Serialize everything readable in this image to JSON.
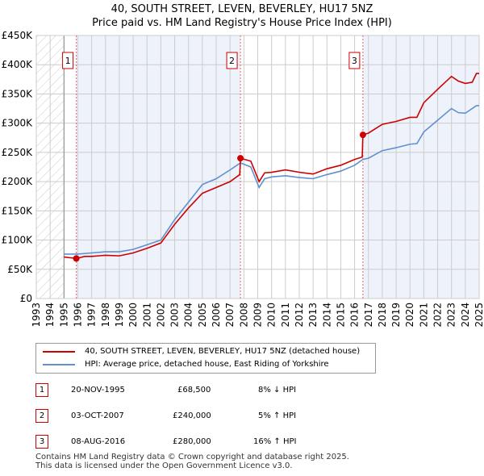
{
  "title": "40, SOUTH STREET, LEVEN, BEVERLEY, HU17 5NZ",
  "subtitle": "Price paid vs. HM Land Registry's House Price Index (HPI)",
  "chart_data": {
    "type": "line",
    "xlim": [
      1993,
      2025
    ],
    "ylim": [
      0,
      450000
    ],
    "yticks": [
      0,
      50000,
      100000,
      150000,
      200000,
      250000,
      300000,
      350000,
      400000,
      450000
    ],
    "ytick_labels": [
      "£0",
      "£50K",
      "£100K",
      "£150K",
      "£200K",
      "£250K",
      "£300K",
      "£350K",
      "£400K",
      "£450K"
    ],
    "xticks": [
      "1993",
      "1994",
      "1995",
      "1996",
      "1997",
      "1998",
      "1999",
      "2000",
      "2001",
      "2002",
      "2003",
      "2004",
      "2005",
      "2006",
      "2007",
      "2008",
      "2009",
      "2010",
      "2011",
      "2012",
      "2013",
      "2014",
      "2015",
      "2016",
      "2017",
      "2018",
      "2019",
      "2020",
      "2021",
      "2022",
      "2023",
      "2024",
      "2025"
    ],
    "grid": true,
    "series": [
      {
        "name": "40, SOUTH STREET, LEVEN, BEVERLEY, HU17 5NZ (detached house)",
        "color": "#cc0000",
        "x": [
          1995,
          1995.9,
          1996.5,
          1997,
          1998,
          1999,
          2000,
          2001,
          2002,
          2003,
          2004,
          2005,
          2006,
          2007,
          2007.7,
          2007.76,
          2008.5,
          2009.1,
          2009.5,
          2010,
          2011,
          2012,
          2013,
          2014,
          2015,
          2016,
          2016.55,
          2016.6,
          2017,
          2018,
          2019,
          2020,
          2020.5,
          2021,
          2022,
          2023,
          2023.5,
          2024,
          2024.5,
          2024.8,
          2025
        ],
        "y": [
          71000,
          68500,
          72000,
          72000,
          74000,
          73000,
          78000,
          86000,
          95000,
          127000,
          155000,
          180000,
          190000,
          200000,
          212000,
          240000,
          235000,
          200000,
          215000,
          216000,
          220000,
          216000,
          213000,
          222000,
          228000,
          238000,
          242000,
          280000,
          283000,
          298000,
          303000,
          310000,
          310000,
          335000,
          358000,
          380000,
          372000,
          368000,
          370000,
          385000,
          385000
        ]
      },
      {
        "name": "HPI: Average price, detached house, East Riding of Yorkshire",
        "color": "#6090d0",
        "x": [
          1995,
          1996,
          1997,
          1998,
          1999,
          2000,
          2001,
          2002,
          2003,
          2004,
          2005,
          2006,
          2007,
          2007.75,
          2008.5,
          2009.1,
          2009.5,
          2010,
          2011,
          2012,
          2013,
          2014,
          2015,
          2016,
          2016.6,
          2017,
          2018,
          2019,
          2020,
          2020.5,
          2021,
          2022,
          2023,
          2023.5,
          2024,
          2024.8,
          2025
        ],
        "y": [
          76000,
          76000,
          78000,
          80000,
          80000,
          84000,
          92000,
          100000,
          135000,
          165000,
          195000,
          205000,
          220000,
          232000,
          225000,
          190000,
          205000,
          208000,
          210000,
          207000,
          205000,
          212000,
          218000,
          228000,
          238000,
          240000,
          253000,
          258000,
          264000,
          265000,
          285000,
          305000,
          325000,
          318000,
          317000,
          330000,
          330000
        ]
      }
    ],
    "sales": [
      {
        "label": "1",
        "x": 1995.89,
        "y": 68500
      },
      {
        "label": "2",
        "x": 2007.75,
        "y": 240000
      },
      {
        "label": "3",
        "x": 2016.6,
        "y": 280000
      }
    ]
  },
  "legend": [
    "40, SOUTH STREET, LEVEN, BEVERLEY, HU17 5NZ (detached house)",
    "HPI: Average price, detached house, East Riding of Yorkshire"
  ],
  "transactions": [
    {
      "num": "1",
      "date": "20-NOV-1995",
      "price": "£68,500",
      "hpi": "8% ↓ HPI"
    },
    {
      "num": "2",
      "date": "03-OCT-2007",
      "price": "£240,000",
      "hpi": "5% ↑ HPI"
    },
    {
      "num": "3",
      "date": "08-AUG-2016",
      "price": "£280,000",
      "hpi": "16% ↑ HPI"
    }
  ],
  "footer": [
    "Contains HM Land Registry data © Crown copyright and database right 2025.",
    "This data is licensed under the Open Government Licence v3.0."
  ]
}
